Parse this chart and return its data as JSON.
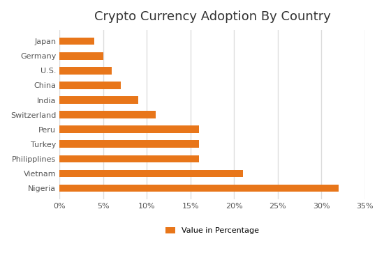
{
  "title": "Crypto Currency Adoption By Country",
  "countries": [
    "Nigeria",
    "Vietnam",
    "Philipplines",
    "Turkey",
    "Peru",
    "Switzerland",
    "India",
    "China",
    "U.S.",
    "Germany",
    "Japan"
  ],
  "values": [
    32,
    21,
    16,
    16,
    16,
    11,
    9,
    7,
    6,
    5,
    4
  ],
  "bar_color": "#E8761A",
  "legend_label": "Value in Percentage",
  "xlim": [
    0,
    35
  ],
  "xticks": [
    0,
    5,
    10,
    15,
    20,
    25,
    30,
    35
  ],
  "xtick_labels": [
    "0%",
    "5%",
    "10%",
    "15%",
    "20%",
    "25%",
    "30%",
    "35%"
  ],
  "background_color": "#ffffff",
  "title_fontsize": 13,
  "bar_height": 0.5,
  "grid_color": "#dddddd",
  "tick_fontsize": 8,
  "legend_fontsize": 8
}
